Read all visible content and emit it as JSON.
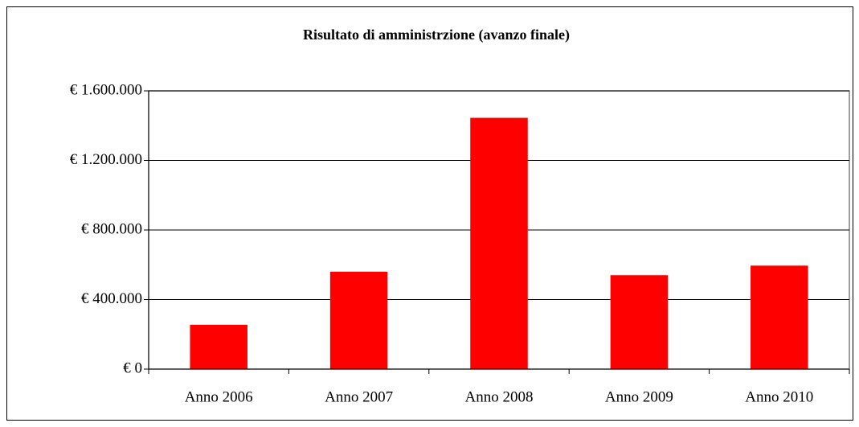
{
  "chart_data": {
    "type": "bar",
    "title": "Risultato di amministrzione (avanzo finale)",
    "categories": [
      "Anno 2006",
      "Anno 2007",
      "Anno 2008",
      "Anno 2009",
      "Anno 2010"
    ],
    "values": [
      255000,
      560000,
      1445000,
      540000,
      595000
    ],
    "color": "#ff0000",
    "ylim": [
      0,
      1600000
    ],
    "yticks": [
      {
        "value": 0,
        "label": "€ 0"
      },
      {
        "value": 400000,
        "label": "€ 400.000"
      },
      {
        "value": 800000,
        "label": "€ 800.000"
      },
      {
        "value": 1200000,
        "label": "€ 1.200.000"
      },
      {
        "value": 1600000,
        "label": "€ 1.600.000"
      }
    ],
    "grid": true
  }
}
